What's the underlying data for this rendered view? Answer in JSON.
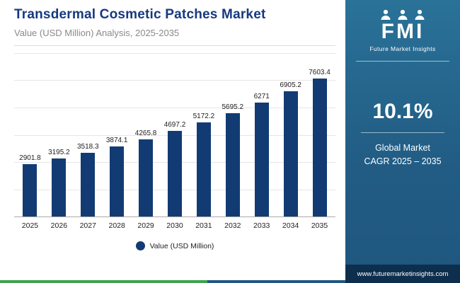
{
  "header": {
    "title": "Transdermal Cosmetic Patches Market",
    "subtitle": "Value (USD Million) Analysis, 2025-2035"
  },
  "chart_data": {
    "type": "bar",
    "title": "Transdermal Cosmetic Patches Market Value (USD Million) Analysis, 2025-2035",
    "categories": [
      "2025",
      "2026",
      "2027",
      "2028",
      "2029",
      "2030",
      "2031",
      "2032",
      "2033",
      "2034",
      "2035"
    ],
    "values": [
      2901.8,
      3195.2,
      3518.3,
      3874.1,
      4265.8,
      4697.2,
      5172.2,
      5695.2,
      6271,
      6905.2,
      7603.4
    ],
    "value_labels": [
      "2901.8",
      "3195.2",
      "3518.3",
      "3874.1",
      "4265.8",
      "4697.2",
      "5172.2",
      "5695.2",
      "6271",
      "6905.2",
      "7603.4"
    ],
    "xlabel": "",
    "ylabel": "Value (USD Million)",
    "ylim": [
      0,
      9000
    ],
    "grid": true,
    "gridline_count": 6,
    "legend": "Value (USD Million)",
    "legend_position": "bottom",
    "bar_color": "#123b74"
  },
  "sidebar": {
    "logo_text": "FMI",
    "logo_subtext": "Future Market Insights",
    "cagr_value": "10.1%",
    "cagr_label_line1": "Global Market",
    "cagr_label_line2": "CAGR 2025 – 2035",
    "website": "www.futuremarketinsights.com"
  },
  "colors": {
    "title_blue": "#16397f",
    "bar_navy": "#123b74",
    "sidebar_top": "#2a7298",
    "sidebar_bottom": "#1e567e",
    "website_bar": "#0e2e4e",
    "strip_green": "#3fa34d",
    "strip_blue": "#22577e"
  }
}
